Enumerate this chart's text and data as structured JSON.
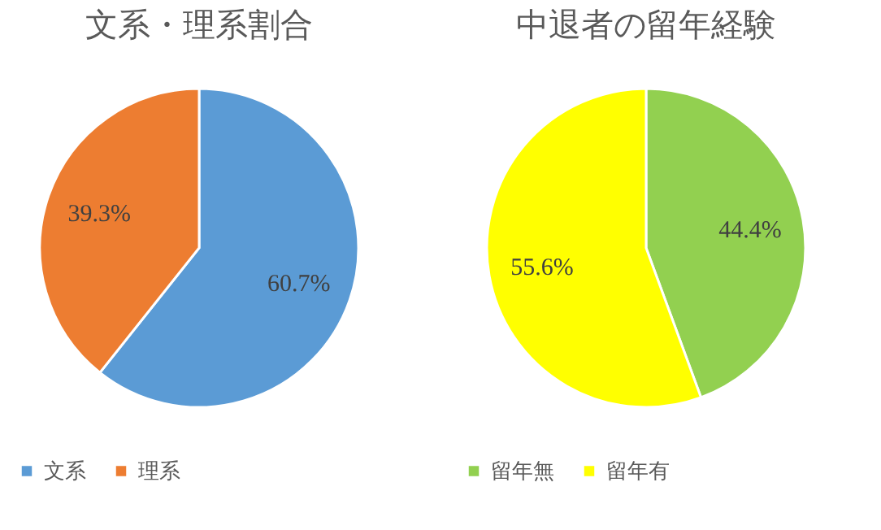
{
  "chart_data": [
    {
      "type": "pie",
      "title": "文系・理系割合",
      "categories": [
        "文系",
        "理系"
      ],
      "values": [
        60.7,
        39.3
      ],
      "colors": [
        "#5b9bd5",
        "#ed7d31"
      ],
      "value_labels": [
        "60.7%",
        "39.3%"
      ],
      "legend": "bottom"
    },
    {
      "type": "pie",
      "title": "中退者の留年経験",
      "categories": [
        "留年無",
        "留年有"
      ],
      "values": [
        44.4,
        55.6
      ],
      "colors": [
        "#92d050",
        "#ffff00"
      ],
      "value_labels": [
        "44.4%",
        "55.6%"
      ],
      "legend": "bottom"
    }
  ]
}
